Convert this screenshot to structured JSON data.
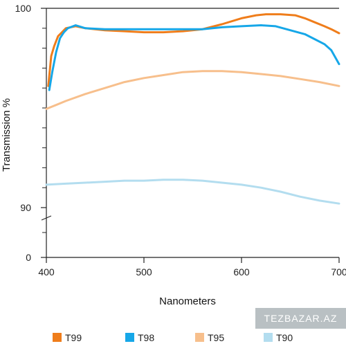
{
  "chart_data": {
    "type": "line",
    "title": "",
    "xlabel": "Nanometers",
    "ylabel": "Transmission %",
    "x_ticks": [
      400,
      500,
      600,
      700
    ],
    "y_tick_labels": [
      {
        "value": 100,
        "label": "100"
      },
      {
        "value": 90,
        "label": "90"
      },
      {
        "value": 0,
        "label": "0"
      }
    ],
    "xlim": [
      400,
      700
    ],
    "y_scale": "broken",
    "grid": false,
    "legend_position": "bottom",
    "series": [
      {
        "name": "T99",
        "color": "#ef7d1b",
        "points": [
          [
            402,
            96.1
          ],
          [
            405,
            97.6
          ],
          [
            408,
            98.1
          ],
          [
            412,
            98.6
          ],
          [
            416,
            98.8
          ],
          [
            420,
            99.0
          ],
          [
            430,
            99.1
          ],
          [
            440,
            99.0
          ],
          [
            450,
            98.95
          ],
          [
            460,
            98.9
          ],
          [
            480,
            98.85
          ],
          [
            500,
            98.8
          ],
          [
            520,
            98.8
          ],
          [
            540,
            98.85
          ],
          [
            560,
            98.95
          ],
          [
            580,
            99.2
          ],
          [
            600,
            99.5
          ],
          [
            615,
            99.65
          ],
          [
            625,
            99.7
          ],
          [
            640,
            99.7
          ],
          [
            655,
            99.65
          ],
          [
            665,
            99.5
          ],
          [
            675,
            99.3
          ],
          [
            685,
            99.1
          ],
          [
            692,
            98.95
          ],
          [
            700,
            98.75
          ]
        ]
      },
      {
        "name": "T98",
        "color": "#16a7e8",
        "points": [
          [
            403,
            95.9
          ],
          [
            406,
            96.8
          ],
          [
            410,
            97.8
          ],
          [
            414,
            98.5
          ],
          [
            418,
            98.8
          ],
          [
            422,
            99.0
          ],
          [
            430,
            99.15
          ],
          [
            440,
            99.0
          ],
          [
            460,
            98.95
          ],
          [
            480,
            98.95
          ],
          [
            500,
            98.95
          ],
          [
            520,
            98.95
          ],
          [
            540,
            98.95
          ],
          [
            560,
            98.95
          ],
          [
            580,
            99.05
          ],
          [
            600,
            99.1
          ],
          [
            620,
            99.15
          ],
          [
            635,
            99.1
          ],
          [
            650,
            98.9
          ],
          [
            665,
            98.7
          ],
          [
            675,
            98.45
          ],
          [
            685,
            98.2
          ],
          [
            692,
            97.9
          ],
          [
            700,
            97.2
          ]
        ]
      },
      {
        "name": "T95",
        "color": "#f7bf8c",
        "points": [
          [
            400,
            94.95
          ],
          [
            410,
            95.15
          ],
          [
            420,
            95.35
          ],
          [
            440,
            95.7
          ],
          [
            460,
            96.0
          ],
          [
            480,
            96.3
          ],
          [
            500,
            96.5
          ],
          [
            520,
            96.65
          ],
          [
            540,
            96.8
          ],
          [
            560,
            96.85
          ],
          [
            580,
            96.85
          ],
          [
            600,
            96.8
          ],
          [
            620,
            96.7
          ],
          [
            640,
            96.6
          ],
          [
            660,
            96.45
          ],
          [
            680,
            96.3
          ],
          [
            700,
            96.1
          ]
        ]
      },
      {
        "name": "T90",
        "color": "#b3ddef",
        "points": [
          [
            400,
            91.15
          ],
          [
            420,
            91.2
          ],
          [
            440,
            91.25
          ],
          [
            460,
            91.3
          ],
          [
            480,
            91.35
          ],
          [
            500,
            91.35
          ],
          [
            520,
            91.4
          ],
          [
            540,
            91.4
          ],
          [
            560,
            91.35
          ],
          [
            580,
            91.25
          ],
          [
            600,
            91.15
          ],
          [
            620,
            91.0
          ],
          [
            640,
            90.8
          ],
          [
            660,
            90.55
          ],
          [
            680,
            90.35
          ],
          [
            700,
            90.2
          ]
        ]
      }
    ]
  },
  "watermark": "TEZBAZAR.AZ"
}
